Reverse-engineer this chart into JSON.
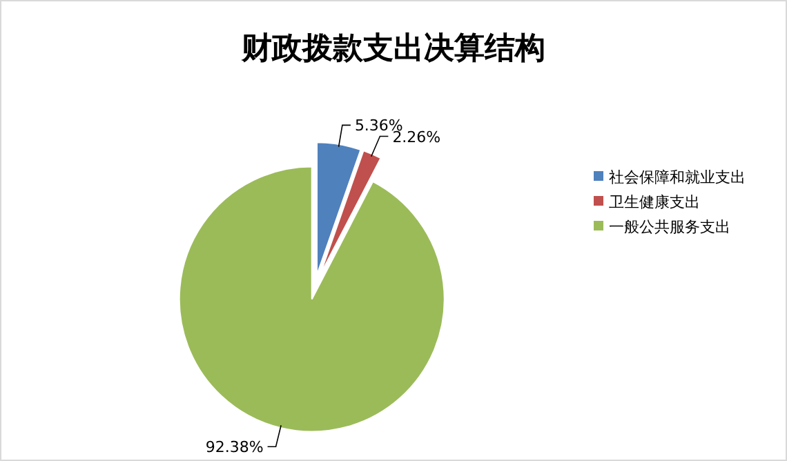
{
  "chart_data": {
    "type": "pie",
    "title": "财政拨款支出决算结构",
    "categories": [
      "社会保障和就业支出",
      "卫生健康支出",
      "一般公共服务支出"
    ],
    "values": [
      5.36,
      2.26,
      92.38
    ],
    "colors": [
      "#4f81bd",
      "#c0504d",
      "#9bbb59"
    ],
    "value_labels": [
      "5.36%",
      "2.26%",
      "92.38%"
    ],
    "legend": "right"
  }
}
